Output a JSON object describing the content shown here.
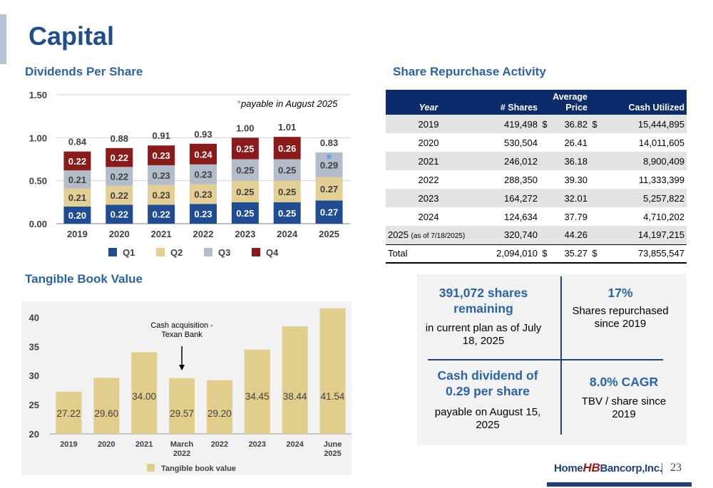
{
  "page": {
    "title": "Capital",
    "page_number": "23",
    "logo_text": {
      "left": "Home",
      "mid": "HB",
      "right": "Bancorp,Inc."
    }
  },
  "colors": {
    "title": "#1f4e8c",
    "section": "#2b64a6",
    "q1": "#1f4c93",
    "q2": "#e3cf94",
    "q3": "#b3bccb",
    "q4": "#8b1a1a",
    "tbv_bar": "#e1cd8c",
    "table_header": "#0b2b6a"
  },
  "dividends": {
    "section_title": "Dividends Per Share",
    "note_star": "*",
    "note_text": "payable in August 2025"
  },
  "tbv": {
    "section_title": "Tangible Book Value"
  },
  "repurchase": {
    "section_title": "Share Repurchase Activity",
    "headers": {
      "year": "Year",
      "shares": "# Shares",
      "price_line1": "Average",
      "price_line2": "Price",
      "cash": "Cash Utilized"
    },
    "rows": [
      {
        "year": "2019",
        "note": "",
        "shares": "419,498",
        "d1": "$",
        "price": "36.82",
        "d2": "$",
        "cash": "15,444,895"
      },
      {
        "year": "2020",
        "note": "",
        "shares": "530,504",
        "d1": "",
        "price": "26.41",
        "d2": "",
        "cash": "14,011,605"
      },
      {
        "year": "2021",
        "note": "",
        "shares": "246,012",
        "d1": "",
        "price": "36.18",
        "d2": "",
        "cash": "8,900,409"
      },
      {
        "year": "2022",
        "note": "",
        "shares": "288,350",
        "d1": "",
        "price": "39.30",
        "d2": "",
        "cash": "11,333,399"
      },
      {
        "year": "2023",
        "note": "",
        "shares": "164,272",
        "d1": "",
        "price": "32.01",
        "d2": "",
        "cash": "5,257,822"
      },
      {
        "year": "2024",
        "note": "",
        "shares": "124,634",
        "d1": "",
        "price": "37.79",
        "d2": "",
        "cash": "4,710,202"
      },
      {
        "year": "2025",
        "note": "(as of 7/18/2025)",
        "shares": "320,740",
        "d1": "",
        "price": "44.26",
        "d2": "",
        "cash": "14,197,215"
      }
    ],
    "total": {
      "label": "Total",
      "shares": "2,094,010",
      "d1": "$",
      "price": "35.27",
      "d2": "$",
      "cash": "73,855,547"
    }
  },
  "summary": {
    "tl_head": "391,072 shares remaining",
    "tl_body": "in current plan as of July 18, 2025",
    "tr_head": "17%",
    "tr_body": "Shares repurchased since 2019",
    "bl_head": "Cash dividend of 0.29 per share",
    "bl_body": "payable on August 15, 2025",
    "br_head": "8.0% CAGR",
    "br_body": "TBV / share since 2019"
  },
  "chart_data": [
    {
      "type": "bar",
      "stacked": true,
      "categories": [
        "2019",
        "2020",
        "2021",
        "2022",
        "2023",
        "2024",
        "2025"
      ],
      "ylim": [
        0,
        1.5
      ],
      "yticks": [
        "0.00",
        "0.50",
        "1.00",
        "1.50"
      ],
      "grid": true,
      "legend_placement": "bottom",
      "series": [
        {
          "name": "Q1",
          "values": [
            0.2,
            0.22,
            0.22,
            0.23,
            0.25,
            0.25,
            0.27
          ],
          "labels": [
            "0.20",
            "0.22",
            "0.22",
            "0.23",
            "0.25",
            "0.25",
            "0.27"
          ]
        },
        {
          "name": "Q2",
          "values": [
            0.21,
            0.22,
            0.23,
            0.23,
            0.25,
            0.25,
            0.27
          ],
          "labels": [
            "0.21",
            "0.22",
            "0.23",
            "0.23",
            "0.25",
            "0.25",
            "0.27"
          ]
        },
        {
          "name": "Q3",
          "values": [
            0.21,
            0.22,
            0.23,
            0.23,
            0.25,
            0.25,
            0.29
          ],
          "labels": [
            "0.21",
            "0.22",
            "0.23",
            "0.23",
            "0.25",
            "0.25",
            "0.29"
          ]
        },
        {
          "name": "Q4",
          "values": [
            0.22,
            0.22,
            0.23,
            0.24,
            0.25,
            0.26,
            null
          ],
          "labels": [
            "0.22",
            "0.22",
            "0.23",
            "0.24",
            "0.25",
            "0.26",
            ""
          ]
        }
      ],
      "totals": [
        "0.84",
        "0.88",
        "0.91",
        "0.93",
        "1.00",
        "1.01",
        "0.83"
      ],
      "star_on_category": "2025"
    },
    {
      "type": "bar",
      "categories": [
        "2019",
        "2020",
        "2021",
        "March 2022",
        "2022",
        "2023",
        "2024",
        "June 2025"
      ],
      "values": [
        27.22,
        29.6,
        34.0,
        29.57,
        29.2,
        34.45,
        38.44,
        41.54
      ],
      "labels": [
        "27.22",
        "29.60",
        "34.00",
        "29.57",
        "29.20",
        "34.45",
        "38.44",
        "41.54"
      ],
      "ylim": [
        20,
        42
      ],
      "yticks": [
        "20",
        "25",
        "30",
        "35",
        "40"
      ],
      "grid": false,
      "legend_placement": "bottom",
      "series_name": "Tangible book value",
      "annotation": {
        "text_line1": "Cash acquisition -",
        "text_line2": "Texan Bank",
        "category": "March 2022"
      }
    }
  ]
}
